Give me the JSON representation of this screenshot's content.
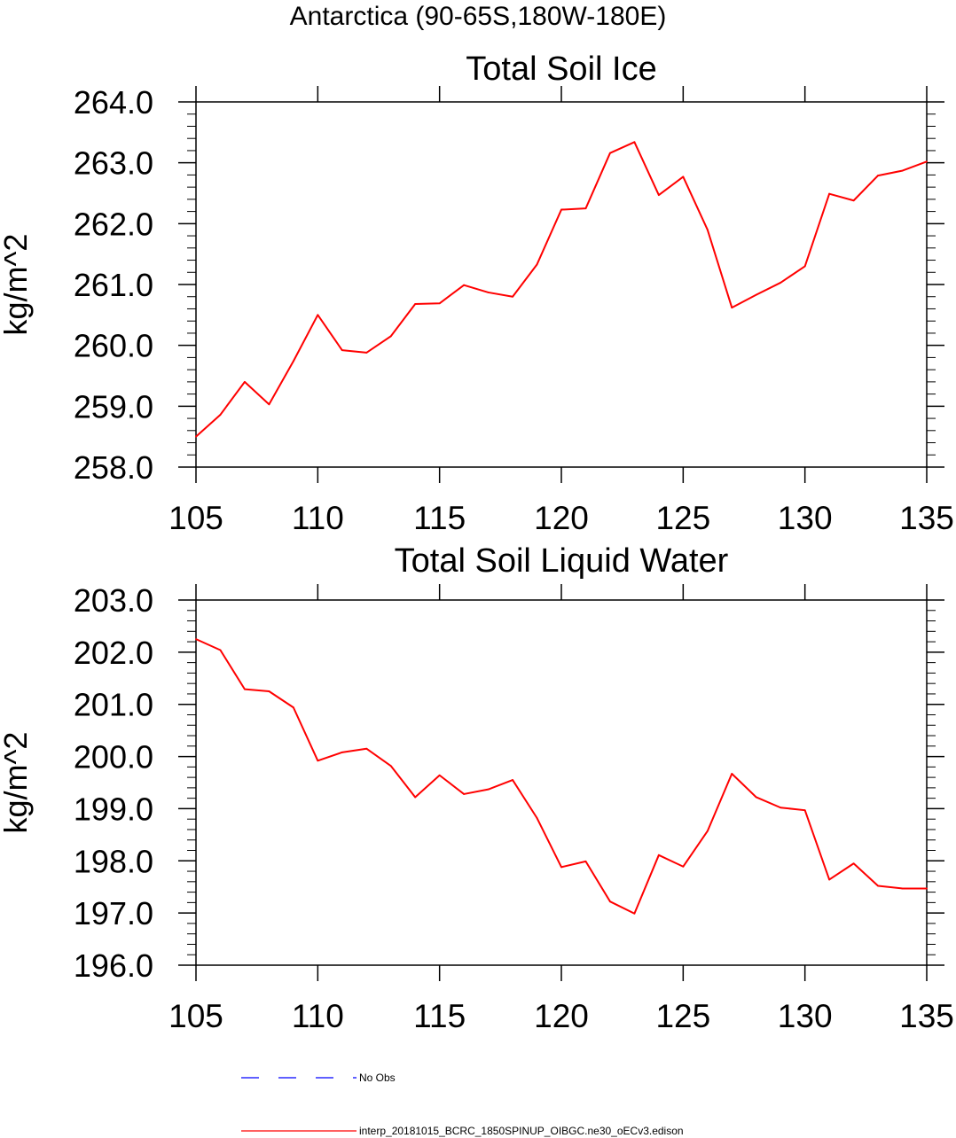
{
  "figure": {
    "suptitle": "Antarctica (90-65S,180W-180E)"
  },
  "chart_data": [
    {
      "type": "line",
      "title": "Total Soil Ice",
      "xlabel": "",
      "ylabel": "kg/m^2",
      "xlim": [
        105,
        135
      ],
      "ylim": [
        258.0,
        264.0
      ],
      "xticks": [
        "105",
        "110",
        "115",
        "120",
        "125",
        "130",
        "135"
      ],
      "yticks": [
        "258.0",
        "259.0",
        "260.0",
        "261.0",
        "262.0",
        "263.0",
        "264.0"
      ],
      "grid": false,
      "series": [
        {
          "name": "interp_20181015_BCRC_1850SPINUP_OIBGC.ne30_oECv3.edison",
          "color": "#ff0000",
          "x": [
            105,
            106,
            107,
            108,
            109,
            110,
            111,
            112,
            113,
            114,
            115,
            116,
            117,
            118,
            119,
            120,
            121,
            122,
            123,
            124,
            125,
            126,
            127,
            128,
            129,
            130,
            131,
            132,
            133,
            134,
            135
          ],
          "y": [
            258.5,
            258.86,
            259.4,
            259.03,
            259.74,
            260.5,
            259.92,
            259.88,
            260.15,
            260.68,
            260.69,
            260.99,
            260.87,
            260.8,
            261.33,
            262.23,
            262.25,
            263.16,
            263.34,
            262.47,
            262.77,
            261.9,
            260.62,
            260.83,
            261.03,
            261.3,
            262.49,
            262.38,
            262.79,
            262.87,
            263.02
          ]
        }
      ]
    },
    {
      "type": "line",
      "title": "Total Soil Liquid Water",
      "xlabel": "",
      "ylabel": "kg/m^2",
      "xlim": [
        105,
        135
      ],
      "ylim": [
        196.0,
        203.0
      ],
      "xticks": [
        "105",
        "110",
        "115",
        "120",
        "125",
        "130",
        "135"
      ],
      "yticks": [
        "196.0",
        "197.0",
        "198.0",
        "199.0",
        "200.0",
        "201.0",
        "202.0",
        "203.0"
      ],
      "grid": false,
      "series": [
        {
          "name": "interp_20181015_BCRC_1850SPINUP_OIBGC.ne30_oECv3.edison",
          "color": "#ff0000",
          "x": [
            105,
            106,
            107,
            108,
            109,
            110,
            111,
            112,
            113,
            114,
            115,
            116,
            117,
            118,
            119,
            120,
            121,
            122,
            123,
            124,
            125,
            126,
            127,
            128,
            129,
            130,
            131,
            132,
            133,
            134,
            135
          ],
          "y": [
            202.25,
            202.04,
            201.29,
            201.25,
            200.94,
            199.92,
            200.08,
            200.15,
            199.82,
            199.22,
            199.64,
            199.28,
            199.37,
            199.55,
            198.82,
            197.88,
            197.99,
            197.22,
            196.99,
            198.11,
            197.89,
            198.57,
            199.67,
            199.22,
            199.02,
            198.97,
            197.64,
            197.95,
            197.52,
            197.47,
            197.47
          ]
        }
      ]
    }
  ],
  "legend": {
    "placement": "bottom-left",
    "items": [
      {
        "label": "No Obs",
        "color": "#0000ff",
        "style": "dashed"
      },
      {
        "label": "interp_20181015_BCRC_1850SPINUP_OIBGC.ne30_oECv3.edison",
        "color": "#ff0000",
        "style": "solid"
      }
    ]
  }
}
